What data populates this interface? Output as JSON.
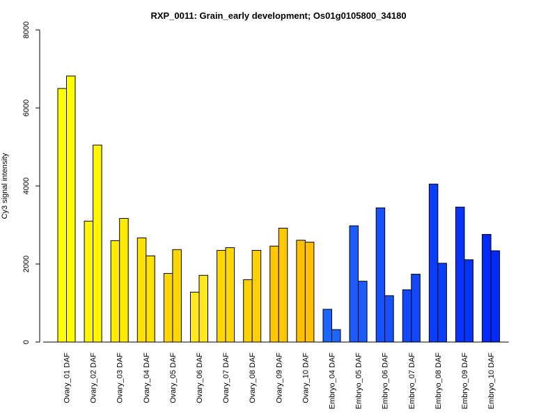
{
  "chart_data": {
    "type": "bar",
    "title": "RXP_0011: Grain_early development; Os01g0105800_34180",
    "xlabel": "",
    "ylabel": "Cy3 signal intensity",
    "ylim": [
      0,
      8000
    ],
    "yticks": [
      0,
      2000,
      4000,
      6000,
      8000
    ],
    "grid": false,
    "legend": "none",
    "categories": [
      "Ovary_01 DAF",
      "Ovary_02 DAF",
      "Ovary_03 DAF",
      "Ovary_04 DAF",
      "Ovary_05 DAF",
      "Ovary_06 DAF",
      "Ovary_07 DAF",
      "Ovary_08 DAF",
      "Ovary_09 DAF",
      "Ovary_10 DAF",
      "Embryo_04 DAF",
      "Embryo_05 DAF",
      "Embryo_06 DAF",
      "Embryo_07 DAF",
      "Embryo_08 DAF",
      "Embryo_09 DAF",
      "Embryo_10 DAF"
    ],
    "series": [
      {
        "values": [
          6500,
          3100,
          2600,
          2670,
          1760,
          1280,
          2350,
          1600,
          2460,
          2610,
          840,
          2980,
          3440,
          1340,
          4050,
          3460,
          2760
        ]
      },
      {
        "values": [
          6820,
          5050,
          3170,
          2210,
          2370,
          1710,
          2420,
          2350,
          2920,
          2560,
          320,
          1560,
          1190,
          1740,
          2020,
          2110,
          2340
        ]
      }
    ],
    "colors": [
      "#ffff00",
      "#fff500",
      "#ffeb00",
      "#ffe100",
      "#ffd700",
      "#ffe820",
      "#ffd800",
      "#ffd000",
      "#ffc800",
      "#ffc000",
      "#1a66ff",
      "#1a5cff",
      "#1452ff",
      "#0f48ff",
      "#0a3eff",
      "#0534ff",
      "#002aff"
    ]
  }
}
